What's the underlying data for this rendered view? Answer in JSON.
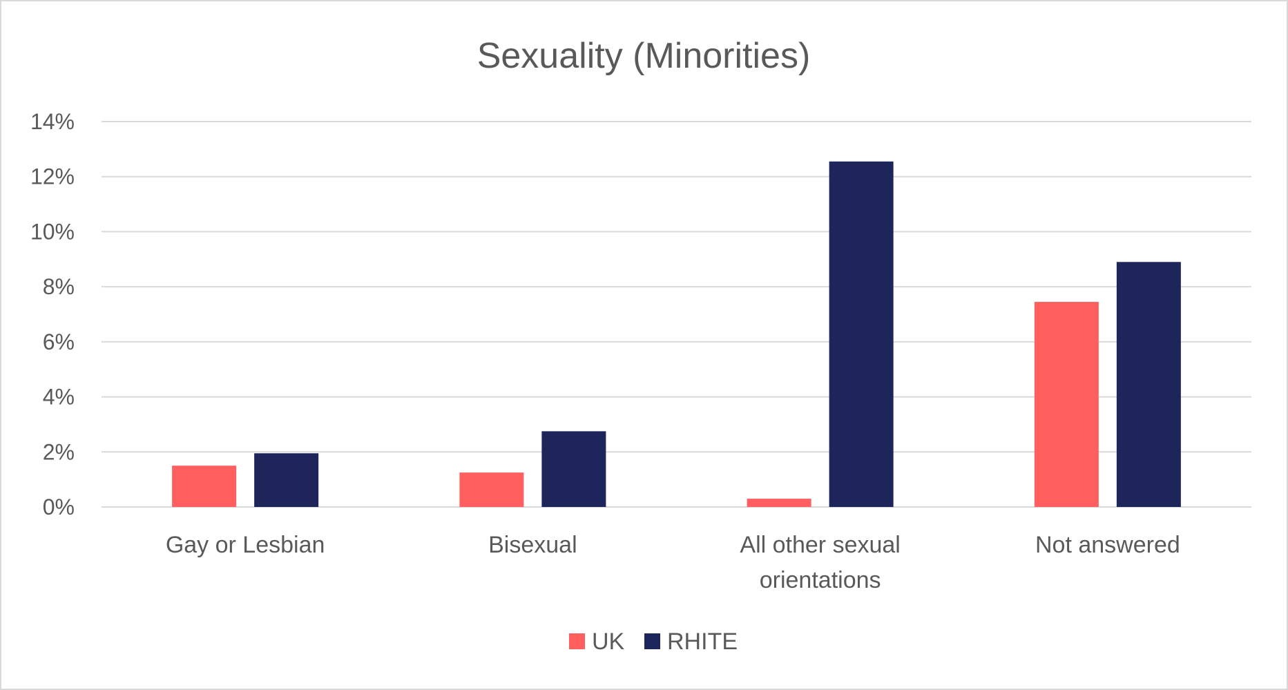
{
  "chart_data": {
    "type": "bar",
    "title": "Sexuality (Minorities)",
    "categories": [
      [
        "Gay or Lesbian"
      ],
      [
        "Bisexual"
      ],
      [
        "All other sexual",
        "orientations"
      ],
      [
        "Not answered"
      ]
    ],
    "series": [
      {
        "name": "UK",
        "color": "#ff5f5f",
        "values": [
          1.5,
          1.25,
          0.3,
          7.45
        ]
      },
      {
        "name": "RHITE",
        "color": "#1e255a",
        "values": [
          1.95,
          2.75,
          12.55,
          8.9
        ]
      }
    ],
    "ylim": [
      0,
      14
    ],
    "yticks": [
      0,
      2,
      4,
      6,
      8,
      10,
      12,
      14
    ],
    "ytick_suffix": "%",
    "grid": true,
    "legend_position": "bottom"
  }
}
